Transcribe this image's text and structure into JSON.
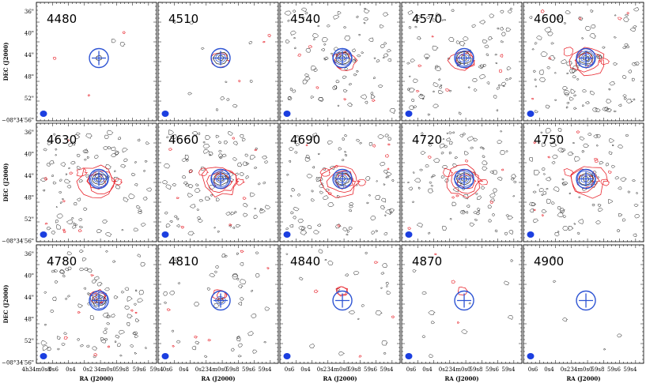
{
  "chart_data": {
    "type": "contour-grid",
    "rows": 3,
    "cols": 5,
    "panel_labels": [
      "4480",
      "4510",
      "4540",
      "4570",
      "4600",
      "4630",
      "4660",
      "4690",
      "4720",
      "4750",
      "4780",
      "4810",
      "4840",
      "4870",
      "4900"
    ],
    "xlabel": "RA (J2000)",
    "ylabel": "DEC (J2000)",
    "x_ticks_first": [
      "4h34m0s8",
      "0s6",
      "0s4",
      "0s2",
      "34m0s0",
      "59s8",
      "59s6",
      "59s4"
    ],
    "x_ticks": [
      "0s6",
      "0s4",
      "0s2",
      "34m0s0",
      "59s8",
      "59s6",
      "59s4"
    ],
    "y_ticks": [
      "36\"",
      "40\"",
      "44\"",
      "48\"",
      "52\"",
      "−08°34′56\""
    ],
    "contour_colors": {
      "red": "#e8242c",
      "black": "#222222",
      "blue": "#2f55d4",
      "beam": "#1c3fe0"
    },
    "red_intensity": [
      0,
      0.35,
      0.6,
      0.8,
      0.9,
      1.0,
      1.0,
      0.95,
      0.95,
      1.0,
      0.85,
      0.7,
      0.5,
      0.35,
      0.05
    ],
    "black_density": [
      0.02,
      0.12,
      0.9,
      0.9,
      0.95,
      1.0,
      1.0,
      1.0,
      1.0,
      1.0,
      0.9,
      0.45,
      0.25,
      0.12,
      0.05
    ],
    "source_blob": [
      0.2,
      0.7,
      0.9,
      1.0,
      1.0,
      1.0,
      1.0,
      1.0,
      1.0,
      1.0,
      0.9,
      0.6,
      0.0,
      0.0,
      0.0
    ],
    "red_offset_up": [
      0,
      0,
      0,
      0,
      0,
      0,
      0,
      0,
      0,
      0,
      0.4,
      0.6,
      1,
      1,
      0
    ]
  }
}
